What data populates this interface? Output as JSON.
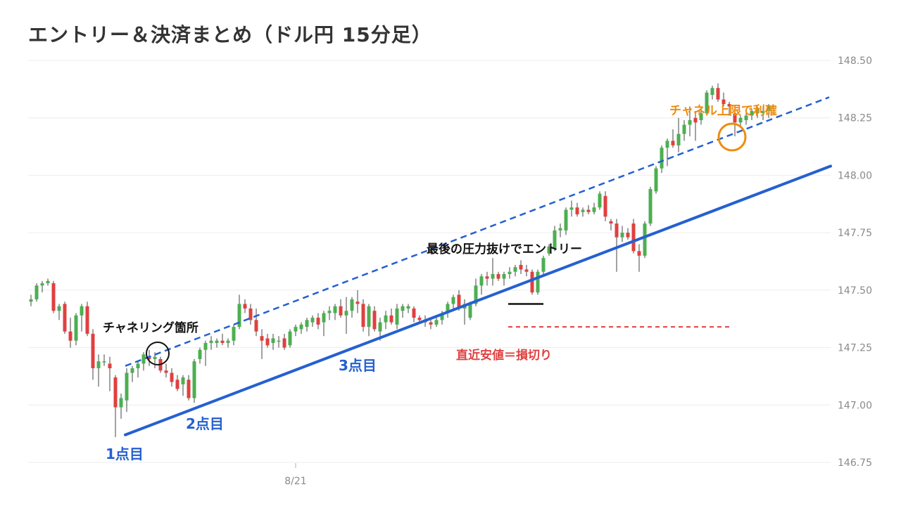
{
  "chart_data": {
    "type": "candlestick",
    "title": "エントリー＆決済まとめ（ドル円 15分足）",
    "ylim": [
      146.75,
      148.5
    ],
    "yticks": [
      "148.50",
      "148.25",
      "148.00",
      "147.75",
      "147.50",
      "147.25",
      "147.00",
      "146.75"
    ],
    "xticks": [
      {
        "label": "8/21",
        "index": 47
      }
    ],
    "grid": true,
    "colors": {
      "up": "#4caf50",
      "down": "#e04040",
      "support": "#2560d0",
      "channel": "#2560d0",
      "stop": "#e04040",
      "entry": "#111111",
      "target": "#ee8c10"
    },
    "candles": [
      [
        147.45,
        147.48,
        147.43,
        147.46
      ],
      [
        147.46,
        147.53,
        147.45,
        147.52
      ],
      [
        147.52,
        147.54,
        147.49,
        147.53
      ],
      [
        147.53,
        147.55,
        147.52,
        147.54
      ],
      [
        147.53,
        147.54,
        147.4,
        147.41
      ],
      [
        147.41,
        147.44,
        147.37,
        147.43
      ],
      [
        147.44,
        147.45,
        147.31,
        147.32
      ],
      [
        147.32,
        147.38,
        147.25,
        147.28
      ],
      [
        147.28,
        147.4,
        147.26,
        147.39
      ],
      [
        147.39,
        147.44,
        147.32,
        147.43
      ],
      [
        147.43,
        147.45,
        147.3,
        147.31
      ],
      [
        147.31,
        147.33,
        147.11,
        147.16
      ],
      [
        147.16,
        147.22,
        147.08,
        147.19
      ],
      [
        147.19,
        147.22,
        147.17,
        147.19
      ],
      [
        147.18,
        147.21,
        147.06,
        147.16
      ],
      [
        147.12,
        147.13,
        146.86,
        146.99
      ],
      [
        146.99,
        147.05,
        146.94,
        147.03
      ],
      [
        147.02,
        147.16,
        146.97,
        147.14
      ],
      [
        147.14,
        147.17,
        147.1,
        147.16
      ],
      [
        147.16,
        147.19,
        147.12,
        147.18
      ],
      [
        147.18,
        147.23,
        147.15,
        147.22
      ],
      [
        147.21,
        147.24,
        147.17,
        147.2
      ],
      [
        147.2,
        147.23,
        147.16,
        147.21
      ],
      [
        147.2,
        147.21,
        147.14,
        147.15
      ],
      [
        147.15,
        147.18,
        147.12,
        147.14
      ],
      [
        147.14,
        147.16,
        147.08,
        147.1
      ],
      [
        147.11,
        147.13,
        147.06,
        147.07
      ],
      [
        147.09,
        147.13,
        147.04,
        147.12
      ],
      [
        147.11,
        147.13,
        147.02,
        147.03
      ],
      [
        147.03,
        147.2,
        147.01,
        147.19
      ],
      [
        147.2,
        147.25,
        147.18,
        147.24
      ],
      [
        147.24,
        147.28,
        147.17,
        147.27
      ],
      [
        147.27,
        147.3,
        147.24,
        147.28
      ],
      [
        147.27,
        147.29,
        147.25,
        147.28
      ],
      [
        147.28,
        147.31,
        147.26,
        147.27
      ],
      [
        147.27,
        147.29,
        147.25,
        147.28
      ],
      [
        147.28,
        147.35,
        147.26,
        147.34
      ],
      [
        147.34,
        147.48,
        147.33,
        147.44
      ],
      [
        147.44,
        147.46,
        147.4,
        147.42
      ],
      [
        147.42,
        147.44,
        147.35,
        147.37
      ],
      [
        147.37,
        147.42,
        147.3,
        147.32
      ],
      [
        147.3,
        147.33,
        147.2,
        147.28
      ],
      [
        147.29,
        147.31,
        147.25,
        147.26
      ],
      [
        147.27,
        147.31,
        147.24,
        147.29
      ],
      [
        147.28,
        147.3,
        147.25,
        147.28
      ],
      [
        147.29,
        147.31,
        147.24,
        147.25
      ],
      [
        147.26,
        147.33,
        147.25,
        147.32
      ],
      [
        147.32,
        147.35,
        147.3,
        147.34
      ],
      [
        147.33,
        147.36,
        147.31,
        147.35
      ],
      [
        147.34,
        147.38,
        147.32,
        147.37
      ],
      [
        147.36,
        147.39,
        147.34,
        147.38
      ],
      [
        147.38,
        147.4,
        147.33,
        147.35
      ],
      [
        147.36,
        147.41,
        147.3,
        147.4
      ],
      [
        147.4,
        147.43,
        147.37,
        147.41
      ],
      [
        147.4,
        147.44,
        147.37,
        147.43
      ],
      [
        147.43,
        147.46,
        147.38,
        147.39
      ],
      [
        147.39,
        147.47,
        147.31,
        147.41
      ],
      [
        147.41,
        147.47,
        147.38,
        147.46
      ],
      [
        147.45,
        147.5,
        147.4,
        147.44
      ],
      [
        147.44,
        147.46,
        147.32,
        147.34
      ],
      [
        147.34,
        147.44,
        147.3,
        147.43
      ],
      [
        147.41,
        147.43,
        147.32,
        147.33
      ],
      [
        147.32,
        147.38,
        147.28,
        147.36
      ],
      [
        147.36,
        147.41,
        147.33,
        147.39
      ],
      [
        147.39,
        147.42,
        147.35,
        147.36
      ],
      [
        147.35,
        147.44,
        147.33,
        147.42
      ],
      [
        147.41,
        147.44,
        147.38,
        147.43
      ],
      [
        147.42,
        147.44,
        147.4,
        147.43
      ],
      [
        147.42,
        147.43,
        147.36,
        147.38
      ],
      [
        147.38,
        147.39,
        147.36,
        147.37
      ],
      [
        147.37,
        147.39,
        147.34,
        147.36
      ],
      [
        147.36,
        147.38,
        147.33,
        147.35
      ],
      [
        147.35,
        147.38,
        147.34,
        147.37
      ],
      [
        147.37,
        147.41,
        147.35,
        147.4
      ],
      [
        147.4,
        147.45,
        147.38,
        147.44
      ],
      [
        147.44,
        147.48,
        147.41,
        147.47
      ],
      [
        147.48,
        147.5,
        147.41,
        147.42
      ],
      [
        147.42,
        147.46,
        147.35,
        147.44
      ],
      [
        147.38,
        147.45,
        147.37,
        147.44
      ],
      [
        147.44,
        147.55,
        147.43,
        147.52
      ],
      [
        147.52,
        147.57,
        147.48,
        147.56
      ],
      [
        147.56,
        147.58,
        147.52,
        147.55
      ],
      [
        147.55,
        147.64,
        147.52,
        147.57
      ],
      [
        147.57,
        147.58,
        147.54,
        147.55
      ],
      [
        147.55,
        147.58,
        147.52,
        147.57
      ],
      [
        147.57,
        147.6,
        147.55,
        147.58
      ],
      [
        147.58,
        147.61,
        147.56,
        147.6
      ],
      [
        147.61,
        147.63,
        147.57,
        147.59
      ],
      [
        147.59,
        147.61,
        147.56,
        147.58
      ],
      [
        147.58,
        147.59,
        147.48,
        147.49
      ],
      [
        147.49,
        147.59,
        147.48,
        147.58
      ],
      [
        147.58,
        147.65,
        147.56,
        147.64
      ],
      [
        147.66,
        147.7,
        147.65,
        147.69
      ],
      [
        147.68,
        147.78,
        147.67,
        147.76
      ],
      [
        147.76,
        147.79,
        147.73,
        147.77
      ],
      [
        147.76,
        147.86,
        147.74,
        147.85
      ],
      [
        147.85,
        147.89,
        147.82,
        147.86
      ],
      [
        147.86,
        147.88,
        147.82,
        147.83
      ],
      [
        147.84,
        147.86,
        147.82,
        147.85
      ],
      [
        147.85,
        147.87,
        147.83,
        147.84
      ],
      [
        147.84,
        147.88,
        147.83,
        147.86
      ],
      [
        147.86,
        147.93,
        147.85,
        147.92
      ],
      [
        147.91,
        147.93,
        147.8,
        147.82
      ],
      [
        147.8,
        147.81,
        147.76,
        147.79
      ],
      [
        147.79,
        147.81,
        147.58,
        147.73
      ],
      [
        147.73,
        147.78,
        147.71,
        147.75
      ],
      [
        147.75,
        147.77,
        147.72,
        147.73
      ],
      [
        147.79,
        147.81,
        147.66,
        147.67
      ],
      [
        147.67,
        147.7,
        147.58,
        147.65
      ],
      [
        147.65,
        147.8,
        147.64,
        147.79
      ],
      [
        147.79,
        147.95,
        147.78,
        147.94
      ],
      [
        147.93,
        148.04,
        147.92,
        148.03
      ],
      [
        148.03,
        148.13,
        148.01,
        148.12
      ],
      [
        148.12,
        148.16,
        148.04,
        148.15
      ],
      [
        148.15,
        148.2,
        148.12,
        148.13
      ],
      [
        148.13,
        148.25,
        148.1,
        148.18
      ],
      [
        148.18,
        148.24,
        148.15,
        148.22
      ],
      [
        148.22,
        148.3,
        148.17,
        148.24
      ],
      [
        148.25,
        148.28,
        148.15,
        148.23
      ],
      [
        148.24,
        148.29,
        148.22,
        148.27
      ],
      [
        148.27,
        148.37,
        148.26,
        148.36
      ],
      [
        148.35,
        148.39,
        148.33,
        148.38
      ],
      [
        148.38,
        148.4,
        148.32,
        148.33
      ],
      [
        148.33,
        148.36,
        148.3,
        148.31
      ],
      [
        148.31,
        148.32,
        148.26,
        148.3
      ],
      [
        148.27,
        148.3,
        148.17,
        148.23
      ],
      [
        148.23,
        148.26,
        148.21,
        148.25
      ],
      [
        148.24,
        148.27,
        148.22,
        148.26
      ],
      [
        148.26,
        148.29,
        148.24,
        148.28
      ],
      [
        148.27,
        148.3,
        148.25,
        148.29
      ],
      [
        148.27,
        148.3,
        148.24,
        148.28
      ],
      [
        148.28,
        148.31,
        148.25,
        148.3
      ]
    ],
    "overlays": {
      "support_line": [
        [
          146.87,
          0
        ],
        [
          148.04,
          1
        ]
      ],
      "channel_line": [
        [
          147.17,
          0
        ],
        [
          148.34,
          1
        ]
      ],
      "stop_line": 147.34,
      "entry_level": 147.44
    },
    "annotations": {
      "label_1": "1点目",
      "label_2": "2点目",
      "label_3": "3点目",
      "channeling": "チャネリング箇所",
      "entry": "最後の圧力抜けでエントリー",
      "stop": "直近安値＝損切り",
      "target": "チャネル上限で利確"
    }
  }
}
